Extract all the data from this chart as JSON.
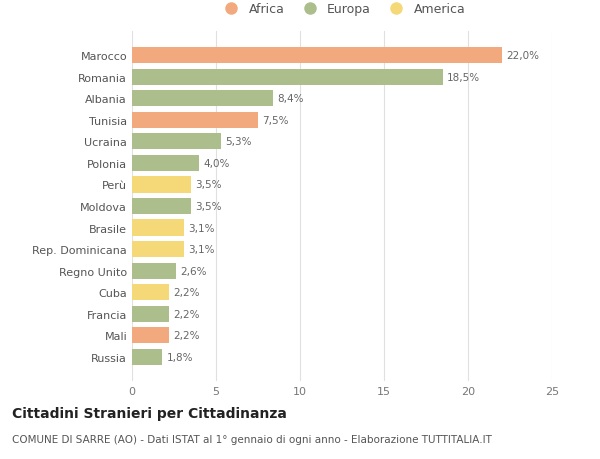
{
  "categories": [
    "Russia",
    "Mali",
    "Francia",
    "Cuba",
    "Regno Unito",
    "Rep. Dominicana",
    "Brasile",
    "Moldova",
    "Perù",
    "Polonia",
    "Ucraina",
    "Tunisia",
    "Albania",
    "Romania",
    "Marocco"
  ],
  "values": [
    1.8,
    2.2,
    2.2,
    2.2,
    2.6,
    3.1,
    3.1,
    3.5,
    3.5,
    4.0,
    5.3,
    7.5,
    8.4,
    18.5,
    22.0
  ],
  "labels": [
    "1,8%",
    "2,2%",
    "2,2%",
    "2,2%",
    "2,6%",
    "3,1%",
    "3,1%",
    "3,5%",
    "3,5%",
    "4,0%",
    "5,3%",
    "7,5%",
    "8,4%",
    "18,5%",
    "22,0%"
  ],
  "continents": [
    "Europa",
    "Africa",
    "Europa",
    "America",
    "Europa",
    "America",
    "America",
    "Europa",
    "America",
    "Europa",
    "Europa",
    "Africa",
    "Europa",
    "Europa",
    "Africa"
  ],
  "colors": {
    "Africa": "#F2A97E",
    "Europa": "#ABBE8C",
    "America": "#F5D878"
  },
  "xlim": [
    0,
    25
  ],
  "xticks": [
    0,
    5,
    10,
    15,
    20,
    25
  ],
  "title": "Cittadini Stranieri per Cittadinanza",
  "subtitle": "COMUNE DI SARRE (AO) - Dati ISTAT al 1° gennaio di ogni anno - Elaborazione TUTTITALIA.IT",
  "background_color": "#ffffff",
  "grid_color": "#e0e0e0",
  "bar_height": 0.75,
  "title_fontsize": 10,
  "subtitle_fontsize": 7.5,
  "label_fontsize": 7.5,
  "tick_fontsize": 8,
  "legend_fontsize": 9
}
